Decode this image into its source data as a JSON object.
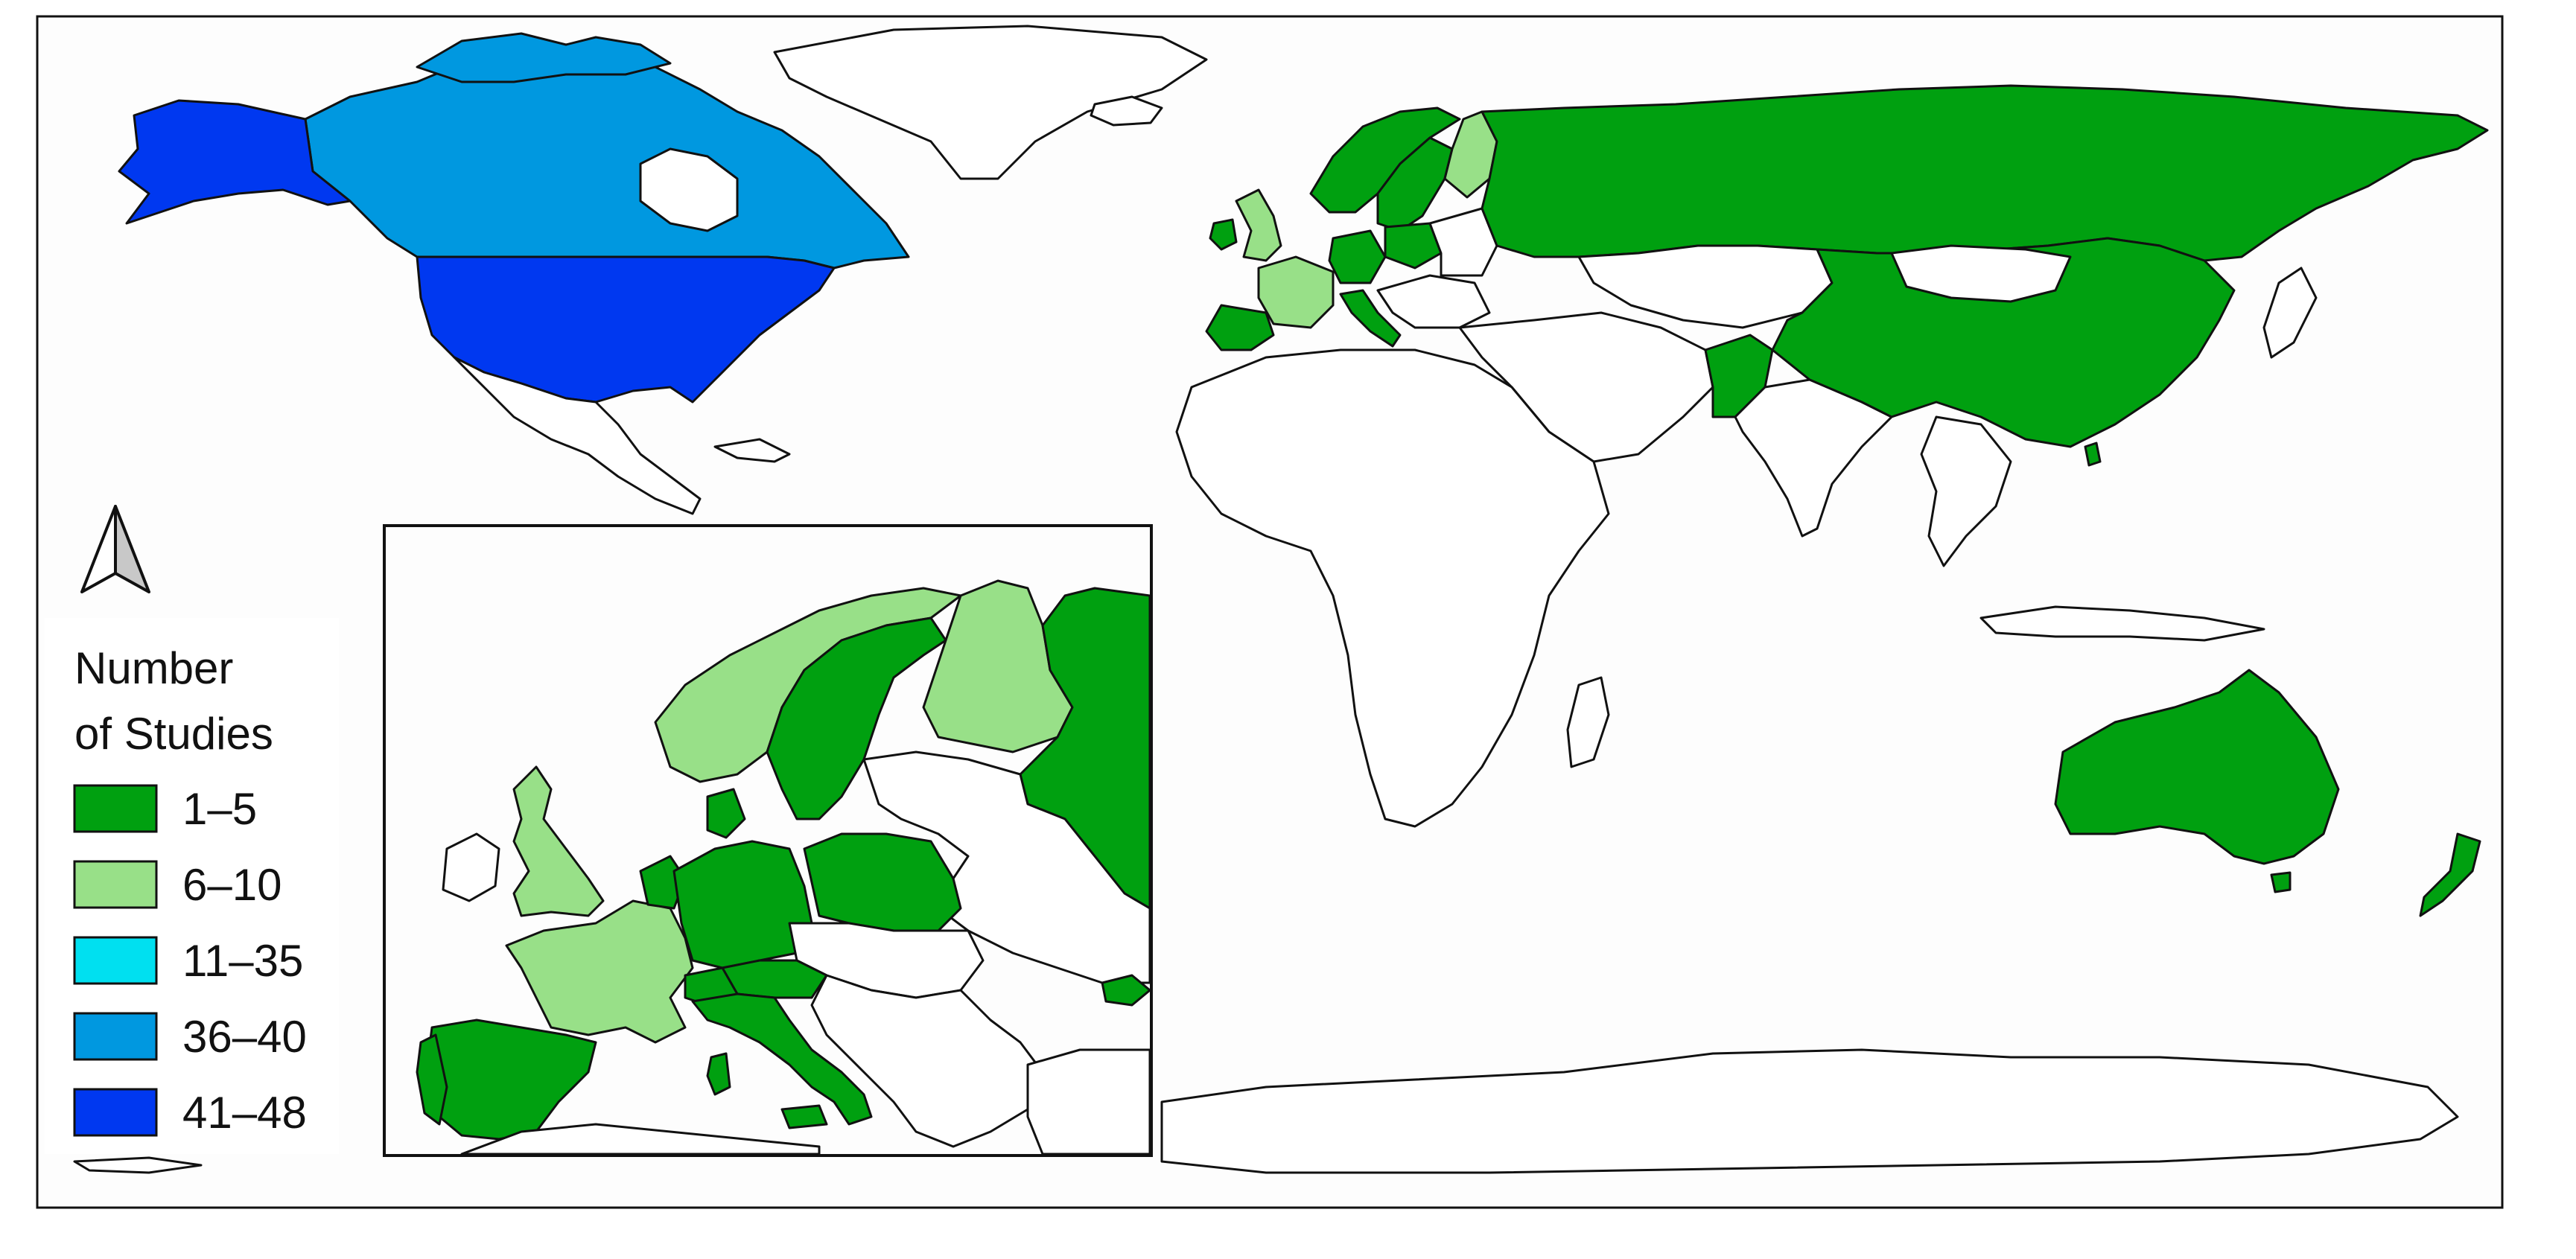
{
  "legend": {
    "title_line1": "Number",
    "title_line2": "of Studies",
    "items": [
      {
        "label": "1–5",
        "color": "#00a010"
      },
      {
        "label": "6–10",
        "color": "#98e088"
      },
      {
        "label": "11–35",
        "color": "#00e0f0"
      },
      {
        "label": "36–40",
        "color": "#0098e0"
      },
      {
        "label": "41–48",
        "color": "#0038f0"
      }
    ]
  },
  "icons": {
    "north_arrow": "north-arrow-icon"
  },
  "colors": {
    "background": "#ffffff",
    "ocean": "#fdfdfd",
    "border": "#111111",
    "no_data": "#ffffff"
  }
}
